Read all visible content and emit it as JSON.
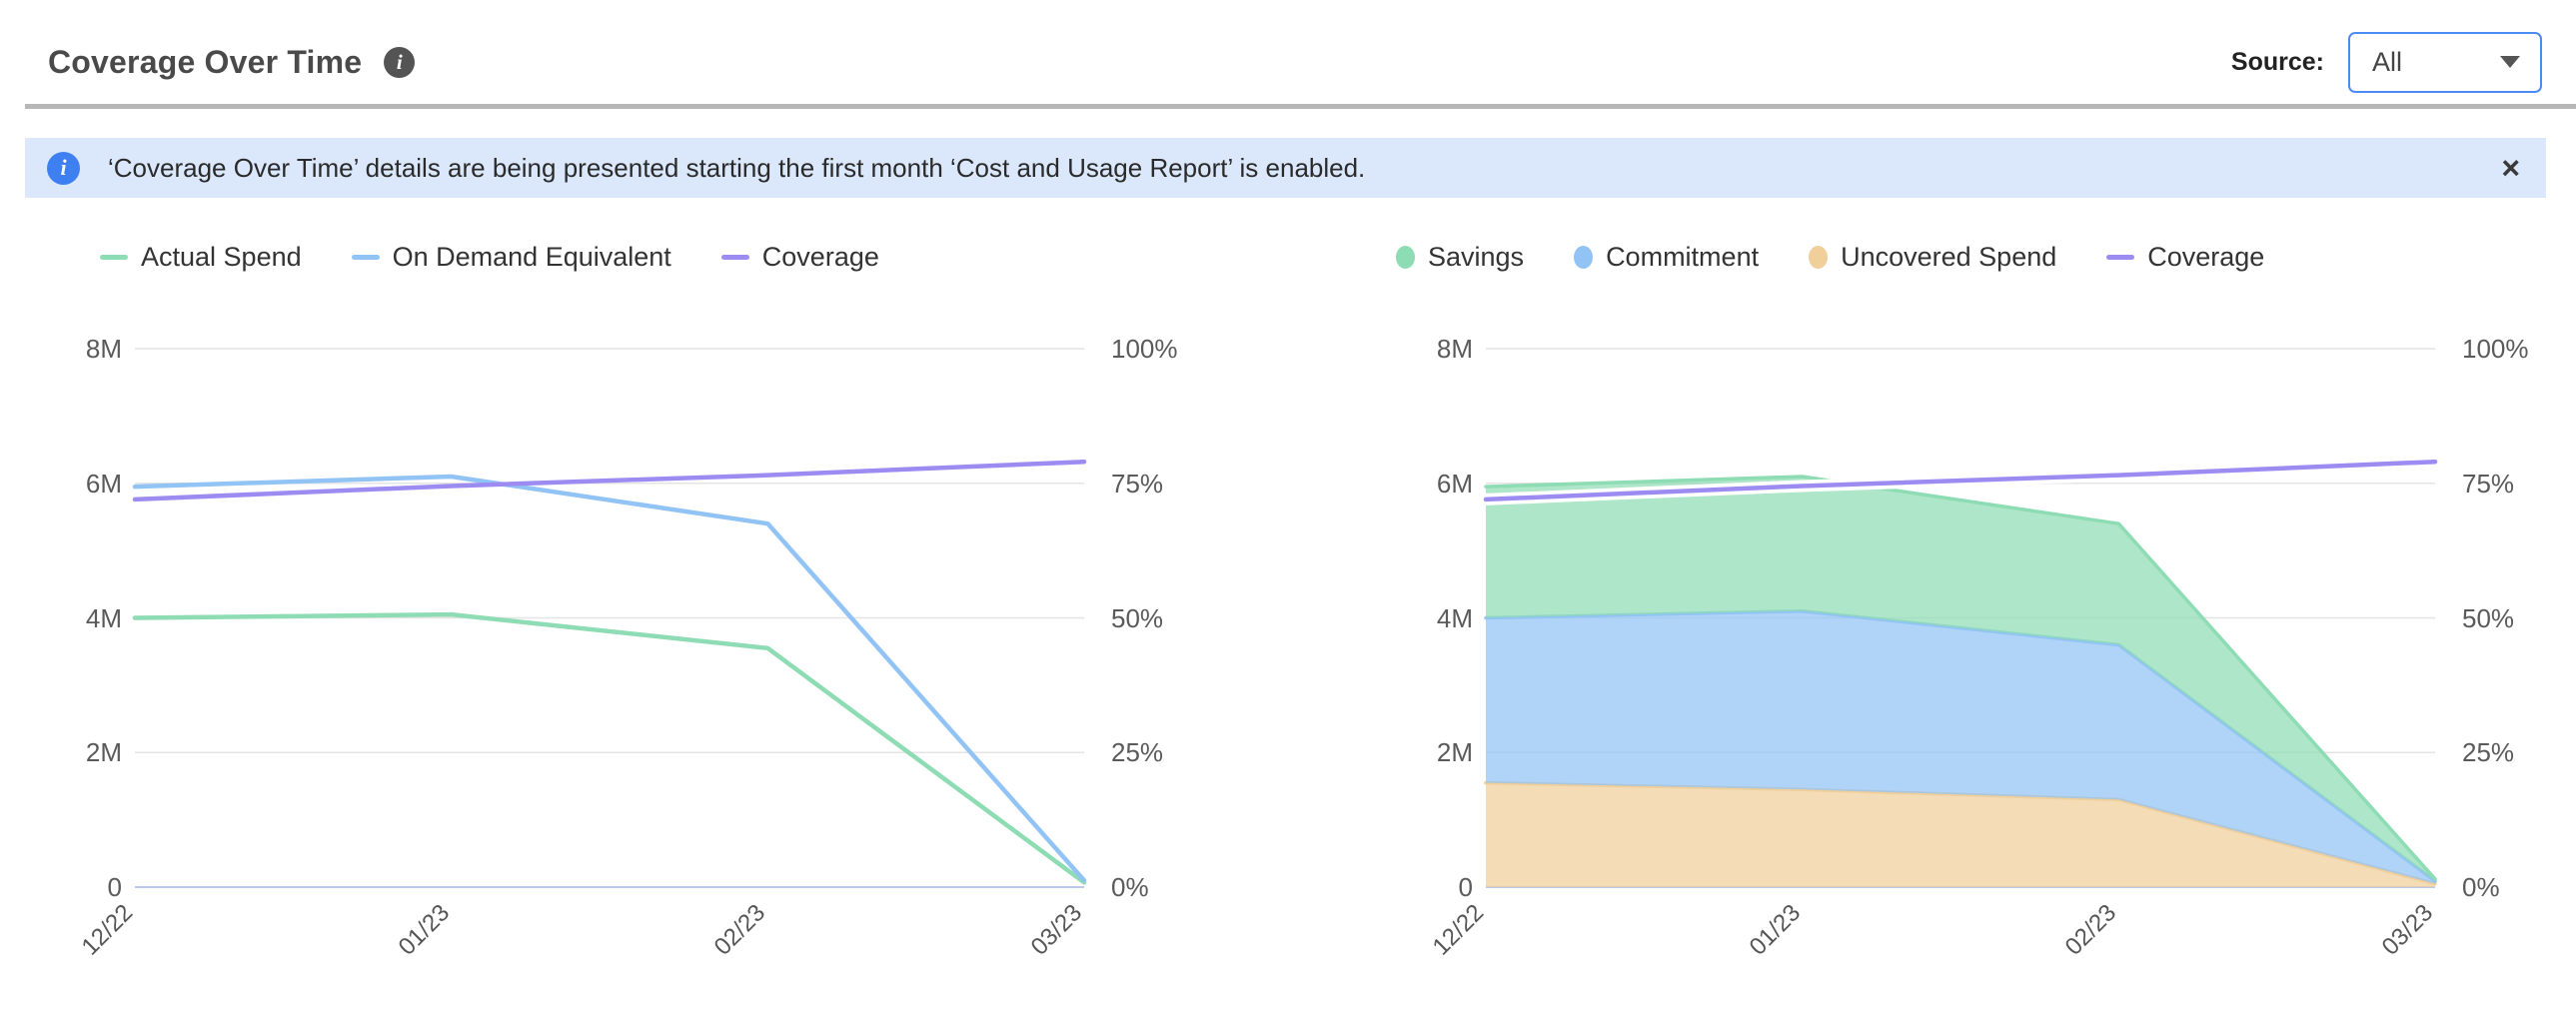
{
  "header": {
    "title": "Coverage Over Time",
    "source_label": "Source:",
    "source_value": "All"
  },
  "banner": {
    "text": "‘Coverage Over Time’ details are being presented starting the first month ‘Cost and Usage Report’ is enabled.",
    "close_glyph": "×",
    "info_glyph": "i"
  },
  "title_info_glyph": "i",
  "colors": {
    "green": "#8edcb3",
    "blue": "#92c3f5",
    "purple": "#9c8cf2",
    "orange": "#f0cf9b",
    "grid": "#e4e4e4",
    "zero_line": "#bcc8ec",
    "banner_bg": "#dbe8fc",
    "banner_icon_blue": "#3e7ff2",
    "dropdown_border_blue": "#4c8bf5",
    "area_fill_opacity": 0.72
  },
  "chart_data": [
    {
      "type": "line",
      "title": "Coverage Over Time - lines",
      "categories": [
        "12/22",
        "01/23",
        "02/23",
        "03/23"
      ],
      "left_axis": {
        "ticks": [
          "8M",
          "6M",
          "4M",
          "2M",
          "0"
        ],
        "max_value": 8,
        "unit": "M"
      },
      "right_axis": {
        "ticks": [
          "100%",
          "75%",
          "50%",
          "25%",
          "0%"
        ],
        "max_value": 100,
        "unit": "%"
      },
      "grid": true,
      "legend_position": "top",
      "legend": [
        {
          "label": "Actual Spend",
          "marker": "line",
          "color": "#8edcb3"
        },
        {
          "label": "On Demand Equivalent",
          "marker": "line",
          "color": "#92c3f5"
        },
        {
          "label": "Coverage",
          "marker": "line",
          "color": "#9c8cf2"
        }
      ],
      "series": [
        {
          "name": "Actual Spend",
          "type": "line",
          "axis": "left",
          "color": "#8edcb3",
          "values": [
            4.0,
            4.05,
            3.55,
            0.07
          ]
        },
        {
          "name": "On Demand Equivalent",
          "type": "line",
          "axis": "left",
          "color": "#92c3f5",
          "values": [
            5.95,
            6.1,
            5.4,
            0.1
          ]
        },
        {
          "name": "Coverage",
          "type": "line",
          "axis": "right",
          "color": "#9c8cf2",
          "values": [
            72,
            74.5,
            76.5,
            79
          ]
        }
      ]
    },
    {
      "type": "area",
      "title": "Coverage Over Time - stacked",
      "categories": [
        "12/22",
        "01/23",
        "02/23",
        "03/23"
      ],
      "left_axis": {
        "ticks": [
          "8M",
          "6M",
          "4M",
          "2M",
          "0"
        ],
        "max_value": 8,
        "unit": "M"
      },
      "right_axis": {
        "ticks": [
          "100%",
          "75%",
          "50%",
          "25%",
          "0%"
        ],
        "max_value": 100,
        "unit": "%"
      },
      "grid": true,
      "legend_position": "top",
      "legend": [
        {
          "label": "Savings",
          "marker": "dot",
          "color": "#8edcb3"
        },
        {
          "label": "Commitment",
          "marker": "dot",
          "color": "#92c3f5"
        },
        {
          "label": "Uncovered Spend",
          "marker": "dot",
          "color": "#f0cf9b"
        },
        {
          "label": "Coverage",
          "marker": "line",
          "color": "#9c8cf2"
        }
      ],
      "series": [
        {
          "name": "Uncovered Spend",
          "type": "area",
          "axis": "left",
          "color": "#f0cf9b",
          "values": [
            1.55,
            1.45,
            1.3,
            0.05
          ]
        },
        {
          "name": "Commitment",
          "type": "area",
          "axis": "left",
          "color": "#92c3f5",
          "values": [
            2.45,
            2.65,
            2.3,
            0.04
          ]
        },
        {
          "name": "Savings",
          "type": "area",
          "axis": "left",
          "color": "#8edcb3",
          "values": [
            1.95,
            2.0,
            1.8,
            0.03
          ]
        },
        {
          "name": "Coverage",
          "type": "line",
          "axis": "right",
          "color": "#9c8cf2",
          "values": [
            72,
            74.5,
            76.5,
            79
          ],
          "halo": true
        }
      ]
    }
  ]
}
